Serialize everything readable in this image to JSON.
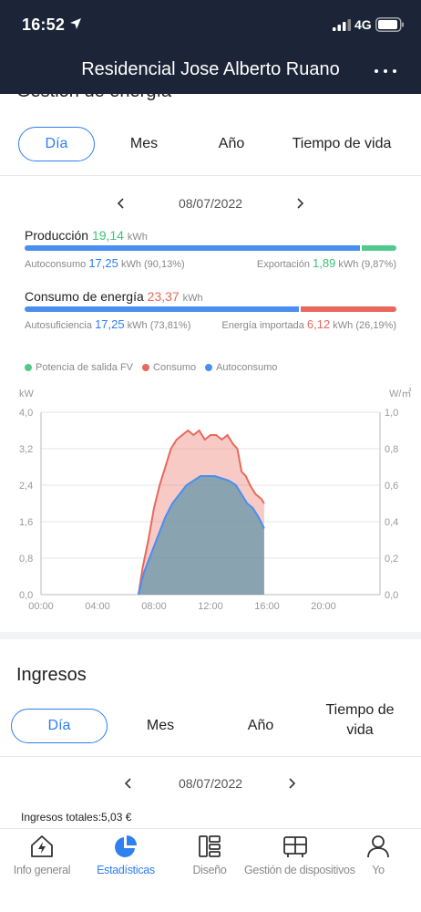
{
  "status_bar": {
    "time": "16:52",
    "network": "4G"
  },
  "header": {
    "title": "Residencial Jose Alberto Ruano"
  },
  "energy": {
    "section_title": "Gestión de energía",
    "tabs": [
      {
        "label": "Día",
        "active": true
      },
      {
        "label": "Mes",
        "active": false
      },
      {
        "label": "Año",
        "active": false
      },
      {
        "label": "Tiempo de vida",
        "active": false
      }
    ],
    "date": "08/07/2022",
    "production": {
      "label": "Producción",
      "value": "19,14",
      "unit": "kWh",
      "self_consumption_label": "Autoconsumo",
      "self_consumption_value": "17,25",
      "self_consumption_unit": "kWh",
      "self_consumption_pct": "(90,13%)",
      "export_label": "Exportación",
      "export_value": "1,89",
      "export_unit": "kWh",
      "export_pct": "(9,87%)",
      "bar_self_share": 0.9013
    },
    "consumption": {
      "label": "Consumo de energía",
      "value": "23,37",
      "unit": "kWh",
      "self_sufficiency_label": "Autosuficiencia",
      "self_sufficiency_value": "17,25",
      "self_sufficiency_unit": "kWh",
      "self_sufficiency_pct": "(73,81%)",
      "import_label": "Energía importada",
      "import_value": "6,12",
      "import_unit": "kWh",
      "import_pct": "(26,19%)",
      "bar_self_share": 0.7381
    },
    "legend": [
      {
        "label": "Potencia de salida FV",
        "color": "#52c98a"
      },
      {
        "label": "Consumo",
        "color": "#e8685c"
      },
      {
        "label": "Autoconsumo",
        "color": "#4a8ff0"
      }
    ]
  },
  "chart_data": {
    "type": "area",
    "ylabel": "kW",
    "y2label": "W/㎡",
    "ylim": [
      0,
      4.0
    ],
    "y2lim": [
      0,
      1.0
    ],
    "yticks": [
      "0,0",
      "0,8",
      "1,6",
      "2,4",
      "3,2",
      "4,0"
    ],
    "y2ticks": [
      "0,0",
      "0,2",
      "0,4",
      "0,6",
      "0,8",
      "1,0"
    ],
    "xticks": [
      "00:00",
      "04:00",
      "08:00",
      "12:00",
      "16:00",
      "20:00"
    ],
    "xlim": [
      0,
      24
    ],
    "grid": true,
    "series": [
      {
        "name": "Consumo",
        "color": "#e8685c",
        "x": [
          6.9,
          7.2,
          7.6,
          8.0,
          8.4,
          8.8,
          9.2,
          9.6,
          10.0,
          10.4,
          10.8,
          11.2,
          11.6,
          12.0,
          12.4,
          12.8,
          13.2,
          13.6,
          13.9,
          14.2,
          14.5,
          14.8,
          15.2,
          15.6,
          15.8
        ],
        "values": [
          0.0,
          0.6,
          1.2,
          1.9,
          2.4,
          2.8,
          3.2,
          3.4,
          3.5,
          3.6,
          3.5,
          3.6,
          3.4,
          3.5,
          3.5,
          3.4,
          3.5,
          3.3,
          3.2,
          2.7,
          2.6,
          2.4,
          2.2,
          2.1,
          2.0
        ]
      },
      {
        "name": "Autoconsumo",
        "color": "#4a8ff0",
        "x": [
          6.9,
          7.3,
          7.8,
          8.3,
          8.8,
          9.3,
          9.8,
          10.3,
          10.8,
          11.3,
          11.8,
          12.3,
          12.8,
          13.3,
          13.8,
          14.2,
          14.6,
          15.0,
          15.4,
          15.8
        ],
        "values": [
          0.0,
          0.5,
          0.9,
          1.3,
          1.7,
          2.0,
          2.2,
          2.4,
          2.5,
          2.6,
          2.6,
          2.6,
          2.55,
          2.5,
          2.4,
          2.2,
          2.0,
          1.9,
          1.7,
          1.45
        ]
      }
    ]
  },
  "income": {
    "title": "Ingresos",
    "tabs": [
      {
        "label": "Día",
        "active": true
      },
      {
        "label": "Mes",
        "active": false
      },
      {
        "label": "Año",
        "active": false
      },
      {
        "label": "Tiempo de vida",
        "active": false
      }
    ],
    "date": "08/07/2022",
    "total": "Ingresos totales:5,03 €"
  },
  "bottom_nav": [
    {
      "label": "Info general",
      "icon": "home-bolt-icon",
      "active": false
    },
    {
      "label": "Estadísticas",
      "icon": "pie-chart-icon",
      "active": true
    },
    {
      "label": "Diseño",
      "icon": "layout-icon",
      "active": false
    },
    {
      "label": "Gestión de dispositivos",
      "icon": "device-icon",
      "active": false
    },
    {
      "label": "Yo",
      "icon": "user-icon",
      "active": false
    }
  ],
  "colors": {
    "accent": "#2f7ff0",
    "header_bg": "#1b2537",
    "production_green": "#3cc378",
    "consumption_red": "#e8685c"
  }
}
